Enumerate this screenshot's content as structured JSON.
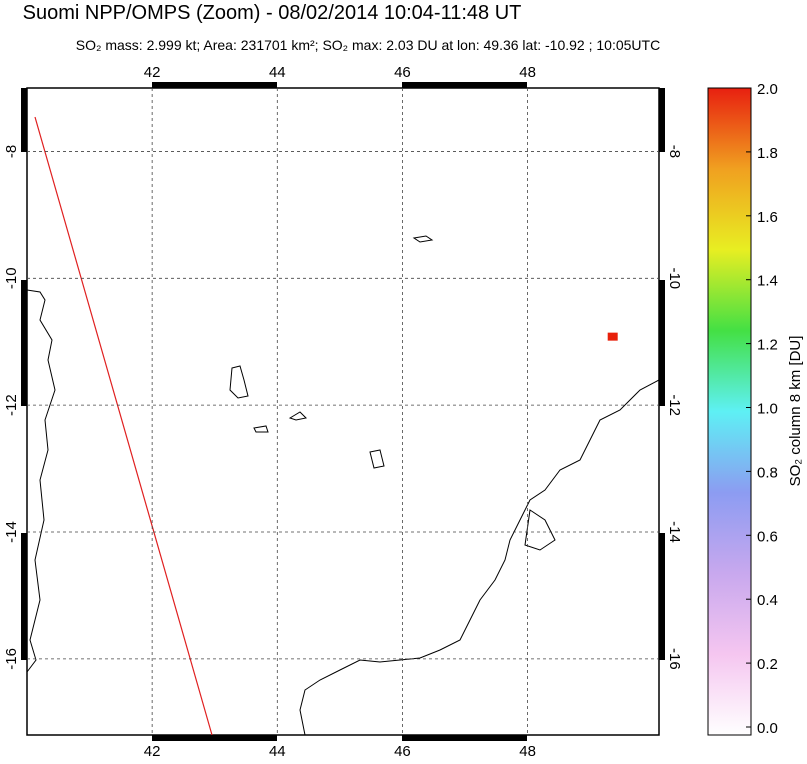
{
  "chart_data": {
    "type": "map",
    "title": "Suomi NPP/OMPS (Zoom) - 08/02/2014 10:04-11:48 UT",
    "subtitle": "SO₂ mass: 2.999 kt; Area: 231701 km²; SO₂ max: 2.03 DU at lon: 49.36 lat: -10.92 ; 10:05UTC",
    "xlim": [
      40.0,
      50.1
    ],
    "ylim": [
      -17.2,
      -7.0
    ],
    "xticks": [
      42,
      44,
      46,
      48
    ],
    "yticks": [
      -8,
      -10,
      -12,
      -14,
      -16
    ],
    "grid": true,
    "max_point": {
      "x": 49.36,
      "y": -10.92,
      "value": 2.03,
      "color": "#e8200a"
    },
    "colorbar": {
      "label": "SO₂ column 8 km [DU]",
      "lim": [
        0,
        2
      ],
      "colors": [
        "#ffffff",
        "#f5c6f0",
        "#c8a8ee",
        "#8c9cf2",
        "#5ef0f4",
        "#44e044",
        "#e8ee22",
        "#f0a020",
        "#e82010"
      ],
      "ticks": [
        {
          "value": 0,
          "label": "0.0"
        },
        {
          "value": 0.2,
          "label": "0.2"
        },
        {
          "value": 0.4,
          "label": "0.4"
        },
        {
          "value": 0.6,
          "label": "0.6"
        },
        {
          "value": 0.8,
          "label": "0.8"
        },
        {
          "value": 1,
          "label": "1.0"
        },
        {
          "value": 1.2,
          "label": "1.2"
        },
        {
          "value": 1.4,
          "label": "1.4"
        },
        {
          "value": 1.6,
          "label": "1.6"
        },
        {
          "value": 1.8,
          "label": "1.8"
        },
        {
          "value": 2,
          "label": "2.0"
        }
      ]
    }
  }
}
